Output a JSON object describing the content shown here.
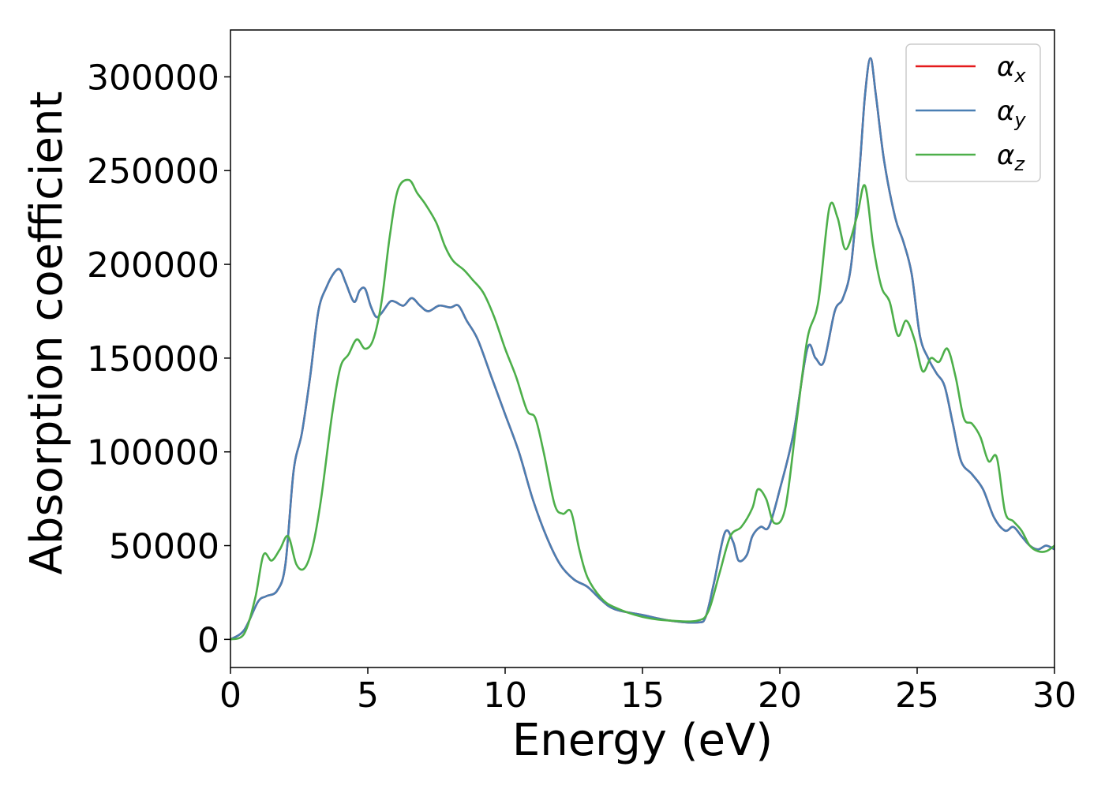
{
  "chart_data": {
    "type": "line",
    "xlabel": "Energy (eV)",
    "ylabel": "Absorption coefficient",
    "xlim": [
      0,
      30
    ],
    "ylim": [
      -15000,
      325000
    ],
    "xticks": [
      0,
      5,
      10,
      15,
      20,
      25,
      30
    ],
    "yticks": [
      0,
      50000,
      100000,
      150000,
      200000,
      250000,
      300000
    ],
    "grid": false,
    "legend_position": "top-right",
    "series": [
      {
        "name": "α",
        "subscript": "x",
        "color": "#e41a1c",
        "x": [
          0,
          0.5,
          1.0,
          1.3,
          1.7,
          2.0,
          2.3,
          2.6,
          2.9,
          3.2,
          3.5,
          3.8,
          4.0,
          4.2,
          4.5,
          4.7,
          4.9,
          5.1,
          5.3,
          5.5,
          5.8,
          6.0,
          6.3,
          6.6,
          6.9,
          7.2,
          7.6,
          8.0,
          8.3,
          8.6,
          9.0,
          9.5,
          10.0,
          10.5,
          11.0,
          11.5,
          12.0,
          12.5,
          13.0,
          13.5,
          14.0,
          15.0,
          16.0,
          17.0,
          17.3,
          17.6,
          18.0,
          18.3,
          18.5,
          18.8,
          19.0,
          19.3,
          19.6,
          20.0,
          20.5,
          21.0,
          21.3,
          21.6,
          22.0,
          22.3,
          22.6,
          22.9,
          23.1,
          23.3,
          23.5,
          23.8,
          24.2,
          24.5,
          24.8,
          25.1,
          25.4,
          25.7,
          26.0,
          26.3,
          26.6,
          27.0,
          27.4,
          27.8,
          28.2,
          28.5,
          28.8,
          29.1,
          29.4,
          29.7,
          30.0
        ],
        "values": [
          0,
          5000,
          20000,
          23000,
          26000,
          40000,
          90000,
          110000,
          140000,
          175000,
          188000,
          196000,
          197000,
          190000,
          180000,
          186000,
          187000,
          178000,
          172000,
          174000,
          180000,
          180000,
          178000,
          182000,
          178000,
          175000,
          178000,
          177000,
          178000,
          170000,
          160000,
          140000,
          120000,
          100000,
          75000,
          55000,
          40000,
          32000,
          28000,
          21000,
          16000,
          13000,
          10000,
          9000,
          12000,
          30000,
          57000,
          52000,
          42000,
          45000,
          55000,
          60000,
          60000,
          80000,
          110000,
          155000,
          150000,
          148000,
          175000,
          182000,
          200000,
          250000,
          290000,
          310000,
          290000,
          255000,
          225000,
          212000,
          195000,
          162000,
          150000,
          142000,
          135000,
          115000,
          95000,
          88000,
          80000,
          65000,
          58000,
          60000,
          55000,
          50000,
          48000,
          50000,
          48000
        ]
      },
      {
        "name": "α",
        "subscript": "y",
        "color": "#4a7fb3",
        "x": [
          0,
          0.5,
          1.0,
          1.3,
          1.7,
          2.0,
          2.3,
          2.6,
          2.9,
          3.2,
          3.5,
          3.8,
          4.0,
          4.2,
          4.5,
          4.7,
          4.9,
          5.1,
          5.3,
          5.5,
          5.8,
          6.0,
          6.3,
          6.6,
          6.9,
          7.2,
          7.6,
          8.0,
          8.3,
          8.6,
          9.0,
          9.5,
          10.0,
          10.5,
          11.0,
          11.5,
          12.0,
          12.5,
          13.0,
          13.5,
          14.0,
          15.0,
          16.0,
          17.0,
          17.3,
          17.6,
          18.0,
          18.3,
          18.5,
          18.8,
          19.0,
          19.3,
          19.6,
          20.0,
          20.5,
          21.0,
          21.3,
          21.6,
          22.0,
          22.3,
          22.6,
          22.9,
          23.1,
          23.3,
          23.5,
          23.8,
          24.2,
          24.5,
          24.8,
          25.1,
          25.4,
          25.7,
          26.0,
          26.3,
          26.6,
          27.0,
          27.4,
          27.8,
          28.2,
          28.5,
          28.8,
          29.1,
          29.4,
          29.7,
          30.0
        ],
        "values": [
          0,
          5000,
          20000,
          23000,
          26000,
          40000,
          90000,
          110000,
          140000,
          175000,
          188000,
          196000,
          197000,
          190000,
          180000,
          186000,
          187000,
          178000,
          172000,
          174000,
          180000,
          180000,
          178000,
          182000,
          178000,
          175000,
          178000,
          177000,
          178000,
          170000,
          160000,
          140000,
          120000,
          100000,
          75000,
          55000,
          40000,
          32000,
          28000,
          21000,
          16000,
          13000,
          10000,
          9000,
          12000,
          30000,
          57000,
          52000,
          42000,
          45000,
          55000,
          60000,
          60000,
          80000,
          110000,
          155000,
          150000,
          148000,
          175000,
          182000,
          200000,
          250000,
          290000,
          310000,
          290000,
          255000,
          225000,
          212000,
          195000,
          162000,
          150000,
          142000,
          135000,
          115000,
          95000,
          88000,
          80000,
          65000,
          58000,
          60000,
          55000,
          50000,
          48000,
          50000,
          48000
        ]
      },
      {
        "name": "α",
        "subscript": "z",
        "color": "#4daf4a",
        "x": [
          0,
          0.5,
          0.9,
          1.2,
          1.5,
          1.8,
          2.1,
          2.4,
          2.7,
          3.0,
          3.3,
          3.7,
          4.0,
          4.3,
          4.6,
          4.9,
          5.2,
          5.5,
          5.8,
          6.1,
          6.5,
          6.8,
          7.1,
          7.5,
          7.8,
          8.1,
          8.5,
          8.8,
          9.2,
          9.6,
          10.0,
          10.4,
          10.8,
          11.1,
          11.4,
          11.8,
          12.1,
          12.4,
          12.7,
          13.0,
          13.5,
          14.0,
          15.0,
          16.0,
          17.0,
          17.4,
          17.8,
          18.2,
          18.6,
          19.0,
          19.2,
          19.5,
          19.8,
          20.2,
          20.6,
          21.0,
          21.4,
          21.8,
          22.1,
          22.4,
          22.8,
          23.1,
          23.4,
          23.7,
          24.0,
          24.3,
          24.6,
          24.9,
          25.2,
          25.5,
          25.8,
          26.1,
          26.4,
          26.7,
          27.0,
          27.3,
          27.6,
          27.9,
          28.2,
          28.5,
          28.8,
          29.1,
          29.4,
          29.7,
          30.0
        ],
        "values": [
          0,
          3000,
          22000,
          45000,
          42000,
          48000,
          55000,
          40000,
          38000,
          50000,
          75000,
          120000,
          145000,
          152000,
          160000,
          155000,
          160000,
          180000,
          215000,
          240000,
          245000,
          238000,
          232000,
          222000,
          210000,
          202000,
          197000,
          192000,
          185000,
          172000,
          155000,
          140000,
          122000,
          118000,
          100000,
          72000,
          67000,
          68000,
          48000,
          33000,
          22000,
          17000,
          12000,
          10000,
          10000,
          15000,
          35000,
          55000,
          60000,
          70000,
          80000,
          75000,
          62000,
          70000,
          115000,
          160000,
          180000,
          230000,
          225000,
          208000,
          225000,
          242000,
          210000,
          188000,
          180000,
          162000,
          170000,
          160000,
          143000,
          150000,
          148000,
          155000,
          140000,
          118000,
          115000,
          108000,
          95000,
          97000,
          68000,
          63000,
          58000,
          50000,
          47000,
          47000,
          50000
        ]
      }
    ]
  }
}
